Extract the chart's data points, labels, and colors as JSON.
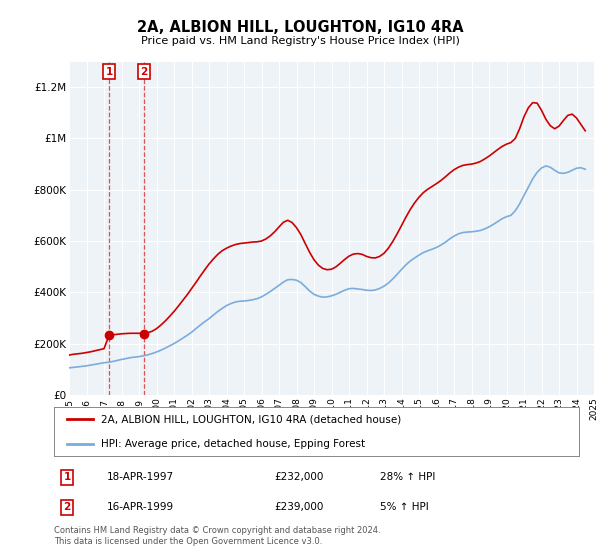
{
  "title": "2A, ALBION HILL, LOUGHTON, IG10 4RA",
  "subtitle": "Price paid vs. HM Land Registry's House Price Index (HPI)",
  "legend_label_red": "2A, ALBION HILL, LOUGHTON, IG10 4RA (detached house)",
  "legend_label_blue": "HPI: Average price, detached house, Epping Forest",
  "sale1_label": "1",
  "sale1_date": "18-APR-1997",
  "sale1_price": "£232,000",
  "sale1_hpi": "28% ↑ HPI",
  "sale2_label": "2",
  "sale2_date": "16-APR-1999",
  "sale2_price": "£239,000",
  "sale2_hpi": "5% ↑ HPI",
  "footer": "Contains HM Land Registry data © Crown copyright and database right 2024.\nThis data is licensed under the Open Government Licence v3.0.",
  "ylim": [
    0,
    1300000
  ],
  "yticks": [
    0,
    200000,
    400000,
    600000,
    800000,
    1000000,
    1200000
  ],
  "ytick_labels": [
    "£0",
    "£200K",
    "£400K",
    "£600K",
    "£800K",
    "£1M",
    "£1.2M"
  ],
  "red_color": "#cc0000",
  "blue_color": "#7aaddb",
  "dashed_color": "#cc0000",
  "annotation_box_color": "#cc0000",
  "sale1_x": 1997.29,
  "sale1_y": 232000,
  "sale2_x": 1999.29,
  "sale2_y": 239000,
  "hpi_years": [
    1995.0,
    1995.25,
    1995.5,
    1995.75,
    1996.0,
    1996.25,
    1996.5,
    1996.75,
    1997.0,
    1997.25,
    1997.5,
    1997.75,
    1998.0,
    1998.25,
    1998.5,
    1998.75,
    1999.0,
    1999.25,
    1999.5,
    1999.75,
    2000.0,
    2000.25,
    2000.5,
    2000.75,
    2001.0,
    2001.25,
    2001.5,
    2001.75,
    2002.0,
    2002.25,
    2002.5,
    2002.75,
    2003.0,
    2003.25,
    2003.5,
    2003.75,
    2004.0,
    2004.25,
    2004.5,
    2004.75,
    2005.0,
    2005.25,
    2005.5,
    2005.75,
    2006.0,
    2006.25,
    2006.5,
    2006.75,
    2007.0,
    2007.25,
    2007.5,
    2007.75,
    2008.0,
    2008.25,
    2008.5,
    2008.75,
    2009.0,
    2009.25,
    2009.5,
    2009.75,
    2010.0,
    2010.25,
    2010.5,
    2010.75,
    2011.0,
    2011.25,
    2011.5,
    2011.75,
    2012.0,
    2012.25,
    2012.5,
    2012.75,
    2013.0,
    2013.25,
    2013.5,
    2013.75,
    2014.0,
    2014.25,
    2014.5,
    2014.75,
    2015.0,
    2015.25,
    2015.5,
    2015.75,
    2016.0,
    2016.25,
    2016.5,
    2016.75,
    2017.0,
    2017.25,
    2017.5,
    2017.75,
    2018.0,
    2018.25,
    2018.5,
    2018.75,
    2019.0,
    2019.25,
    2019.5,
    2019.75,
    2020.0,
    2020.25,
    2020.5,
    2020.75,
    2021.0,
    2021.25,
    2021.5,
    2021.75,
    2022.0,
    2022.25,
    2022.5,
    2022.75,
    2023.0,
    2023.25,
    2023.5,
    2023.75,
    2024.0,
    2024.25,
    2024.5
  ],
  "hpi_values": [
    105000,
    107000,
    109000,
    111000,
    113000,
    116000,
    119000,
    122000,
    125000,
    127000,
    130000,
    134000,
    138000,
    141000,
    145000,
    147000,
    149000,
    152000,
    156000,
    161000,
    167000,
    174000,
    182000,
    191000,
    200000,
    210000,
    221000,
    232000,
    244000,
    258000,
    272000,
    285000,
    297000,
    311000,
    325000,
    337000,
    348000,
    356000,
    362000,
    365000,
    366000,
    368000,
    371000,
    375000,
    382000,
    392000,
    403000,
    415000,
    427000,
    440000,
    449000,
    450000,
    447000,
    438000,
    422000,
    405000,
    392000,
    385000,
    381000,
    382000,
    386000,
    392000,
    400000,
    408000,
    414000,
    415000,
    413000,
    411000,
    408000,
    407000,
    409000,
    415000,
    424000,
    436000,
    452000,
    470000,
    489000,
    507000,
    522000,
    534000,
    545000,
    555000,
    562000,
    568000,
    575000,
    584000,
    595000,
    608000,
    619000,
    628000,
    633000,
    635000,
    636000,
    638000,
    641000,
    647000,
    655000,
    665000,
    676000,
    687000,
    695000,
    700000,
    718000,
    745000,
    778000,
    810000,
    843000,
    868000,
    885000,
    893000,
    888000,
    876000,
    866000,
    864000,
    868000,
    876000,
    884000,
    886000,
    880000
  ],
  "red_years": [
    1995.0,
    1995.25,
    1995.5,
    1995.75,
    1996.0,
    1996.25,
    1996.5,
    1996.75,
    1997.0,
    1997.29,
    1997.5,
    1997.75,
    1998.0,
    1998.25,
    1998.5,
    1998.75,
    1999.0,
    1999.29,
    1999.5,
    1999.75,
    2000.0,
    2000.25,
    2000.5,
    2000.75,
    2001.0,
    2001.25,
    2001.5,
    2001.75,
    2002.0,
    2002.25,
    2002.5,
    2002.75,
    2003.0,
    2003.25,
    2003.5,
    2003.75,
    2004.0,
    2004.25,
    2004.5,
    2004.75,
    2005.0,
    2005.25,
    2005.5,
    2005.75,
    2006.0,
    2006.25,
    2006.5,
    2006.75,
    2007.0,
    2007.25,
    2007.5,
    2007.75,
    2008.0,
    2008.25,
    2008.5,
    2008.75,
    2009.0,
    2009.25,
    2009.5,
    2009.75,
    2010.0,
    2010.25,
    2010.5,
    2010.75,
    2011.0,
    2011.25,
    2011.5,
    2011.75,
    2012.0,
    2012.25,
    2012.5,
    2012.75,
    2013.0,
    2013.25,
    2013.5,
    2013.75,
    2014.0,
    2014.25,
    2014.5,
    2014.75,
    2015.0,
    2015.25,
    2015.5,
    2015.75,
    2016.0,
    2016.25,
    2016.5,
    2016.75,
    2017.0,
    2017.25,
    2017.5,
    2017.75,
    2018.0,
    2018.25,
    2018.5,
    2018.75,
    2019.0,
    2019.25,
    2019.5,
    2019.75,
    2020.0,
    2020.25,
    2020.5,
    2020.75,
    2021.0,
    2021.25,
    2021.5,
    2021.75,
    2022.0,
    2022.25,
    2022.5,
    2022.75,
    2023.0,
    2023.25,
    2023.5,
    2023.75,
    2024.0,
    2024.25,
    2024.5
  ],
  "red_values": [
    155000,
    158000,
    160000,
    162000,
    165000,
    168000,
    172000,
    176000,
    180000,
    232000,
    234000,
    236000,
    238000,
    239000,
    240000,
    240000,
    240000,
    239000,
    242000,
    248000,
    258000,
    272000,
    288000,
    306000,
    325000,
    346000,
    368000,
    390000,
    414000,
    438000,
    463000,
    487000,
    510000,
    530000,
    548000,
    562000,
    572000,
    580000,
    586000,
    590000,
    592000,
    594000,
    596000,
    597000,
    600000,
    608000,
    620000,
    636000,
    655000,
    673000,
    681000,
    672000,
    652000,
    625000,
    590000,
    556000,
    527000,
    506000,
    493000,
    488000,
    490000,
    499000,
    513000,
    528000,
    541000,
    549000,
    551000,
    548000,
    540000,
    535000,
    534000,
    540000,
    552000,
    572000,
    598000,
    628000,
    660000,
    693000,
    723000,
    749000,
    771000,
    789000,
    802000,
    813000,
    824000,
    836000,
    850000,
    865000,
    878000,
    888000,
    895000,
    898000,
    900000,
    904000,
    910000,
    920000,
    931000,
    944000,
    957000,
    969000,
    978000,
    984000,
    1000000,
    1038000,
    1085000,
    1120000,
    1140000,
    1138000,
    1110000,
    1075000,
    1050000,
    1038000,
    1048000,
    1070000,
    1090000,
    1095000,
    1080000,
    1055000,
    1030000
  ],
  "xmin": 1995,
  "xmax": 2025,
  "xticks": [
    1995,
    1996,
    1997,
    1998,
    1999,
    2000,
    2001,
    2002,
    2003,
    2004,
    2005,
    2006,
    2007,
    2008,
    2009,
    2010,
    2011,
    2012,
    2013,
    2014,
    2015,
    2016,
    2017,
    2018,
    2019,
    2020,
    2021,
    2022,
    2023,
    2024,
    2025
  ],
  "background_color": "#ffffff",
  "plot_bg_color": "#eef3f8",
  "grid_color": "#ffffff"
}
